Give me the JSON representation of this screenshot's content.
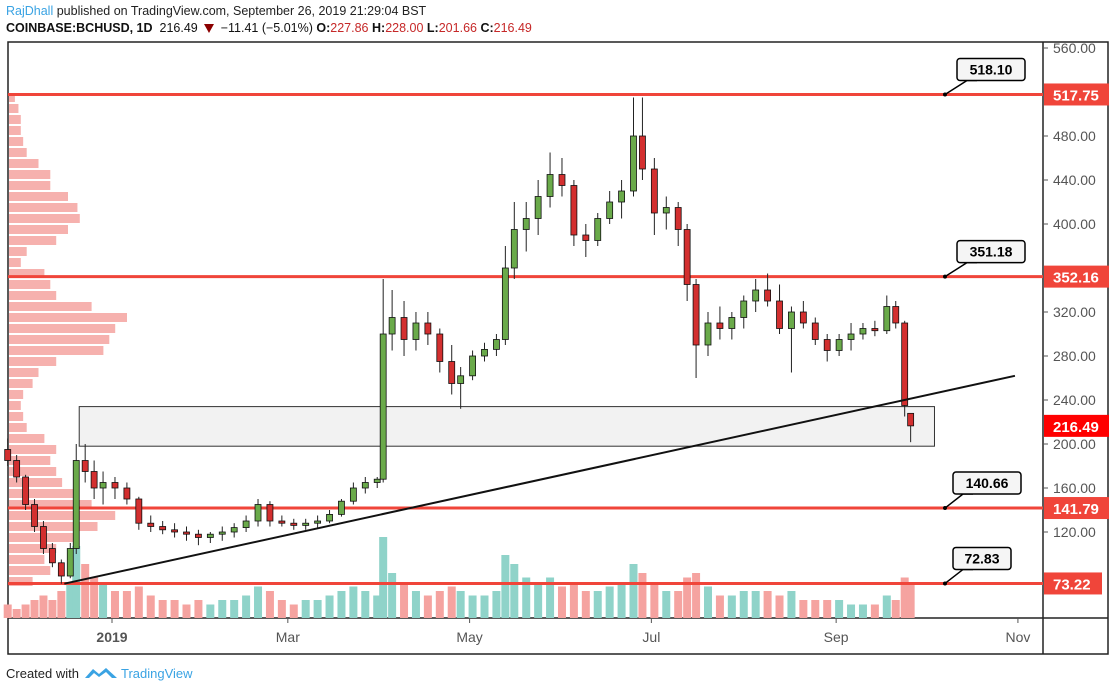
{
  "header": {
    "author": "RajDhall",
    "published_text": "published on TradingView.com, September 26, 2019 21:29:04 BST",
    "symbol": "COINBASE:BCHUSD, 1D",
    "last": "216.49",
    "change": "−11.41 (−5.01%)",
    "o_label": "O:",
    "o": "227.86",
    "h_label": "H:",
    "h": "228.00",
    "l_label": "L:",
    "l": "201.66",
    "c_label": "C:",
    "c": "216.49",
    "direction_icon": "triangle-down-icon"
  },
  "footer": {
    "created_with": "Created with",
    "brand": "TradingView",
    "logo_icon": "tradingview-logo-icon"
  },
  "colors": {
    "up": "#6aaa4a",
    "down": "#d32f2f",
    "level_line": "#f0453a",
    "last_price": "#ff0000",
    "vol_up": "#8fd3c9",
    "vol_down": "#f5a3a0",
    "profile": "#f5a3a0"
  },
  "chart_data": {
    "type": "candlestick",
    "symbol": "COINBASE:BCHUSD",
    "interval": "1D",
    "ylim": [
      60,
      570
    ],
    "y_ticks": [
      "560.00",
      "480.00",
      "440.00",
      "400.00",
      "320.00",
      "280.00",
      "240.00",
      "200.00",
      "160.00",
      "120.00"
    ],
    "x_ticks": [
      {
        "label": "2019",
        "date": "2019-01-01"
      },
      {
        "label": "Mar",
        "date": "2019-03-01"
      },
      {
        "label": "May",
        "date": "2019-05-01"
      },
      {
        "label": "Jul",
        "date": "2019-07-01"
      },
      {
        "label": "Sep",
        "date": "2019-09-01"
      },
      {
        "label": "Nov",
        "date": "2019-11-01"
      }
    ],
    "candles_columns": [
      "date",
      "open",
      "high",
      "low",
      "close",
      "volume_rel"
    ],
    "candles": [
      [
        "2018-11-27",
        195,
        205,
        180,
        185,
        3
      ],
      [
        "2018-11-30",
        185,
        190,
        165,
        170,
        2
      ],
      [
        "2018-12-03",
        170,
        172,
        140,
        145,
        3
      ],
      [
        "2018-12-06",
        145,
        150,
        120,
        125,
        4
      ],
      [
        "2018-12-09",
        125,
        130,
        100,
        105,
        5
      ],
      [
        "2018-12-12",
        105,
        110,
        88,
        92,
        4
      ],
      [
        "2018-12-15",
        92,
        95,
        73,
        80,
        6
      ],
      [
        "2018-12-18",
        80,
        110,
        78,
        105,
        8
      ],
      [
        "2018-12-20",
        105,
        200,
        100,
        185,
        16
      ],
      [
        "2018-12-23",
        185,
        200,
        165,
        175,
        12
      ],
      [
        "2018-12-26",
        175,
        185,
        150,
        160,
        9
      ],
      [
        "2018-12-29",
        160,
        175,
        145,
        165,
        8
      ],
      [
        "2019-01-02",
        165,
        170,
        150,
        160,
        6
      ],
      [
        "2019-01-06",
        160,
        165,
        145,
        150,
        6
      ],
      [
        "2019-01-10",
        150,
        152,
        122,
        128,
        7
      ],
      [
        "2019-01-14",
        128,
        135,
        120,
        125,
        5
      ],
      [
        "2019-01-18",
        125,
        130,
        118,
        122,
        4
      ],
      [
        "2019-01-22",
        122,
        128,
        115,
        120,
        4
      ],
      [
        "2019-01-26",
        120,
        125,
        112,
        118,
        3
      ],
      [
        "2019-01-30",
        118,
        122,
        108,
        115,
        4
      ],
      [
        "2019-02-03",
        115,
        120,
        110,
        118,
        3
      ],
      [
        "2019-02-07",
        118,
        125,
        112,
        120,
        4
      ],
      [
        "2019-02-11",
        120,
        128,
        115,
        124,
        4
      ],
      [
        "2019-02-15",
        124,
        135,
        120,
        130,
        5
      ],
      [
        "2019-02-19",
        130,
        150,
        125,
        145,
        7
      ],
      [
        "2019-02-23",
        145,
        148,
        125,
        130,
        6
      ],
      [
        "2019-02-27",
        130,
        135,
        125,
        128,
        4
      ],
      [
        "2019-03-03",
        128,
        132,
        122,
        126,
        3
      ],
      [
        "2019-03-07",
        126,
        132,
        122,
        128,
        4
      ],
      [
        "2019-03-11",
        128,
        135,
        124,
        130,
        4
      ],
      [
        "2019-03-15",
        130,
        140,
        128,
        136,
        5
      ],
      [
        "2019-03-19",
        136,
        150,
        134,
        148,
        6
      ],
      [
        "2019-03-23",
        148,
        165,
        145,
        160,
        7
      ],
      [
        "2019-03-27",
        160,
        170,
        155,
        165,
        6
      ],
      [
        "2019-03-31",
        165,
        170,
        160,
        168,
        5
      ],
      [
        "2019-04-02",
        168,
        350,
        165,
        300,
        18
      ],
      [
        "2019-04-05",
        300,
        340,
        285,
        315,
        10
      ],
      [
        "2019-04-09",
        315,
        330,
        280,
        295,
        8
      ],
      [
        "2019-04-13",
        295,
        320,
        285,
        310,
        6
      ],
      [
        "2019-04-17",
        310,
        320,
        290,
        300,
        5
      ],
      [
        "2019-04-21",
        300,
        305,
        265,
        275,
        6
      ],
      [
        "2019-04-25",
        275,
        290,
        245,
        255,
        7
      ],
      [
        "2019-04-28",
        255,
        270,
        232,
        262,
        6
      ],
      [
        "2019-05-02",
        262,
        285,
        258,
        280,
        5
      ],
      [
        "2019-05-06",
        280,
        292,
        275,
        286,
        5
      ],
      [
        "2019-05-10",
        286,
        300,
        280,
        295,
        6
      ],
      [
        "2019-05-13",
        295,
        380,
        290,
        360,
        14
      ],
      [
        "2019-05-16",
        360,
        420,
        350,
        395,
        12
      ],
      [
        "2019-05-20",
        395,
        420,
        375,
        405,
        9
      ],
      [
        "2019-05-24",
        405,
        440,
        390,
        425,
        8
      ],
      [
        "2019-05-28",
        425,
        465,
        415,
        445,
        9
      ],
      [
        "2019-06-01",
        445,
        460,
        425,
        435,
        7
      ],
      [
        "2019-06-05",
        435,
        440,
        380,
        390,
        8
      ],
      [
        "2019-06-09",
        390,
        400,
        370,
        385,
        6
      ],
      [
        "2019-06-13",
        385,
        410,
        380,
        405,
        6
      ],
      [
        "2019-06-17",
        405,
        430,
        400,
        420,
        7
      ],
      [
        "2019-06-21",
        420,
        440,
        405,
        430,
        8
      ],
      [
        "2019-06-25",
        430,
        515,
        425,
        480,
        12
      ],
      [
        "2019-06-28",
        480,
        515,
        440,
        450,
        10
      ],
      [
        "2019-07-02",
        450,
        460,
        390,
        410,
        8
      ],
      [
        "2019-07-06",
        410,
        425,
        395,
        415,
        6
      ],
      [
        "2019-07-10",
        415,
        420,
        380,
        395,
        6
      ],
      [
        "2019-07-13",
        395,
        400,
        330,
        345,
        9
      ],
      [
        "2019-07-16",
        345,
        350,
        260,
        290,
        10
      ],
      [
        "2019-07-20",
        290,
        320,
        280,
        310,
        7
      ],
      [
        "2019-07-24",
        310,
        325,
        295,
        305,
        5
      ],
      [
        "2019-07-28",
        305,
        320,
        295,
        315,
        5
      ],
      [
        "2019-08-01",
        315,
        335,
        305,
        330,
        6
      ],
      [
        "2019-08-05",
        330,
        350,
        320,
        340,
        6
      ],
      [
        "2019-08-09",
        340,
        355,
        325,
        330,
        6
      ],
      [
        "2019-08-13",
        330,
        345,
        300,
        305,
        5
      ],
      [
        "2019-08-17",
        305,
        325,
        265,
        320,
        6
      ],
      [
        "2019-08-21",
        320,
        330,
        305,
        310,
        4
      ],
      [
        "2019-08-25",
        310,
        315,
        290,
        295,
        4
      ],
      [
        "2019-08-29",
        295,
        300,
        275,
        285,
        4
      ],
      [
        "2019-09-02",
        285,
        300,
        280,
        295,
        4
      ],
      [
        "2019-09-06",
        295,
        310,
        285,
        300,
        3
      ],
      [
        "2019-09-10",
        300,
        310,
        295,
        305,
        3
      ],
      [
        "2019-09-14",
        305,
        312,
        298,
        303,
        3
      ],
      [
        "2019-09-18",
        303,
        335,
        300,
        325,
        5
      ],
      [
        "2019-09-21",
        325,
        330,
        305,
        310,
        4
      ],
      [
        "2019-09-24",
        310,
        312,
        225,
        235,
        9
      ],
      [
        "2019-09-26",
        227.86,
        228,
        201.66,
        216.49,
        8
      ]
    ],
    "volume_profile": {
      "bucket_start": 70,
      "bucket_size": 10,
      "values": [
        20,
        35,
        30,
        40,
        55,
        75,
        90,
        70,
        55,
        45,
        40,
        35,
        40,
        30,
        15,
        12,
        10,
        12,
        20,
        25,
        40,
        80,
        85,
        90,
        100,
        70,
        40,
        35,
        30,
        10,
        15,
        40,
        50,
        60,
        58,
        50,
        35,
        35,
        25,
        15,
        12,
        10,
        10,
        8,
        5
      ]
    },
    "horizontal_levels": [
      {
        "axis_label": "517.75",
        "callout": "518.10"
      },
      {
        "axis_label": "352.16",
        "callout": "351.18"
      },
      {
        "axis_label": "141.79",
        "callout": "140.66"
      },
      {
        "axis_label": "73.22",
        "callout": "72.83"
      }
    ],
    "trendline": {
      "from": {
        "date": "2018-12-16",
        "price": 73
      },
      "to": {
        "date": "2019-10-31",
        "price": 262
      }
    },
    "zone": {
      "from_date": "2018-12-21",
      "to_date": "2019-10-04",
      "low": 198,
      "high": 234
    },
    "last_price_label": "216.49"
  }
}
